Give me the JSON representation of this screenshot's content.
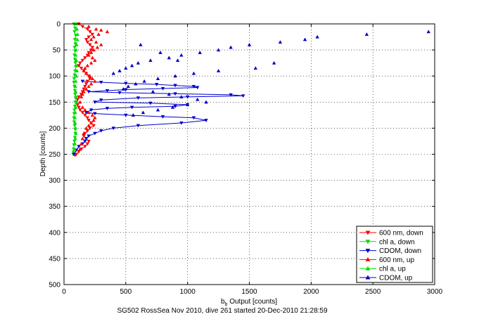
{
  "chart_data": {
    "type": "line",
    "title": "",
    "xlabel": "b",
    "xlabel_sub": "b",
    "xlabel_suffix": " Output [counts]",
    "ylabel": "Depth [counts]",
    "caption": "SG502 RossSea Nov 2010, dive 261 started 20-Dec-2010 21:28:59",
    "xlim": [
      0,
      3000
    ],
    "ylim": [
      500,
      0
    ],
    "xticks": [
      0,
      500,
      1000,
      1500,
      2000,
      2500,
      3000
    ],
    "yticks": [
      0,
      50,
      100,
      150,
      200,
      250,
      300,
      350,
      400,
      450,
      500
    ],
    "grid": true,
    "legend_position": "bottom-right",
    "series": [
      {
        "name": "600 nm, down",
        "color": "#ff0000",
        "marker": "triangle-down",
        "connected": true,
        "x": [
          120,
          150,
          190,
          210,
          230,
          200,
          180,
          190,
          210,
          230,
          220,
          200,
          190,
          170,
          150,
          130,
          120,
          140,
          160,
          180,
          200,
          210,
          190,
          180,
          170,
          160,
          150,
          140,
          120,
          110,
          100,
          110,
          120,
          130,
          150,
          170,
          190,
          200,
          220,
          240,
          210,
          190,
          170,
          160,
          180,
          200,
          190,
          170,
          140,
          120,
          100,
          90
        ],
        "y": [
          0,
          5,
          10,
          15,
          20,
          25,
          30,
          35,
          40,
          45,
          50,
          55,
          60,
          65,
          70,
          75,
          80,
          85,
          90,
          95,
          100,
          105,
          110,
          115,
          120,
          125,
          130,
          135,
          140,
          145,
          150,
          155,
          160,
          165,
          170,
          175,
          180,
          185,
          190,
          195,
          200,
          205,
          210,
          215,
          220,
          225,
          230,
          235,
          240,
          245,
          250,
          252
        ]
      },
      {
        "name": "chl a, down",
        "color": "#00dd00",
        "marker": "triangle-down",
        "connected": true,
        "x": [
          80,
          90,
          85,
          95,
          88,
          92,
          86,
          90,
          84,
          88,
          92,
          95,
          90,
          86,
          82,
          80,
          84,
          88,
          90,
          94,
          92,
          88,
          84,
          82,
          80,
          82,
          86,
          90,
          92,
          88,
          84,
          80,
          78,
          76,
          74
        ],
        "y": [
          0,
          8,
          15,
          22,
          30,
          38,
          45,
          52,
          60,
          68,
          75,
          82,
          90,
          98,
          105,
          112,
          120,
          128,
          135,
          142,
          150,
          158,
          165,
          172,
          180,
          188,
          195,
          202,
          210,
          218,
          225,
          232,
          240,
          246,
          250
        ]
      },
      {
        "name": "CDOM, down",
        "color": "#0000cc",
        "marker": "triangle-down",
        "connected": true,
        "x": [
          150,
          300,
          500,
          750,
          900,
          1050,
          1080,
          800,
          500,
          350,
          200,
          450,
          900,
          1350,
          1450,
          1000,
          600,
          300,
          250,
          700,
          1000,
          900,
          550,
          350,
          220,
          180,
          250,
          500,
          800,
          1050,
          1150,
          950,
          600,
          400,
          300,
          250,
          200,
          180,
          170,
          150,
          120,
          100,
          80
        ],
        "y": [
          110,
          112,
          114,
          116,
          118,
          120,
          122,
          124,
          126,
          128,
          130,
          132,
          134,
          136,
          138,
          140,
          142,
          146,
          150,
          152,
          155,
          158,
          160,
          162,
          165,
          170,
          172,
          175,
          178,
          180,
          185,
          190,
          195,
          200,
          205,
          210,
          215,
          220,
          225,
          230,
          235,
          242,
          250
        ]
      },
      {
        "name": "600 nm, up",
        "color": "#ff0000",
        "marker": "triangle-up",
        "connected": false,
        "x": [
          200,
          260,
          300,
          350,
          280,
          240,
          220,
          260,
          300,
          270,
          240,
          220,
          200,
          230,
          250,
          220,
          190,
          170,
          160,
          180,
          210,
          230,
          250,
          220,
          200,
          180,
          160,
          150,
          140,
          130,
          150,
          170,
          200,
          230,
          250,
          240,
          220,
          200,
          180,
          160,
          150,
          140,
          130
        ],
        "y": [
          5,
          10,
          12,
          15,
          20,
          25,
          30,
          35,
          40,
          45,
          50,
          55,
          60,
          65,
          70,
          75,
          80,
          85,
          90,
          95,
          100,
          105,
          110,
          115,
          120,
          125,
          130,
          135,
          140,
          150,
          160,
          165,
          170,
          175,
          180,
          185,
          190,
          195,
          200,
          210,
          220,
          230,
          240
        ]
      },
      {
        "name": "chl a, up",
        "color": "#00dd00",
        "marker": "triangle-up",
        "connected": false,
        "x": [
          100,
          105,
          110,
          108,
          102,
          98,
          95,
          100,
          104,
          106,
          100,
          96,
          92,
          95,
          98,
          100,
          96,
          92,
          88,
          90,
          94,
          96,
          92,
          88,
          86
        ],
        "y": [
          0,
          10,
          20,
          30,
          40,
          50,
          60,
          70,
          80,
          90,
          100,
          110,
          120,
          130,
          140,
          150,
          160,
          170,
          180,
          190,
          200,
          210,
          220,
          230,
          240
        ]
      },
      {
        "name": "CDOM, up",
        "color": "#0000cc",
        "marker": "triangle-up",
        "connected": false,
        "x": [
          2950,
          2450,
          2050,
          1950,
          1750,
          1500,
          1350,
          1250,
          1100,
          950,
          850,
          700,
          600,
          550,
          500,
          450,
          400,
          620,
          780,
          920,
          1700,
          1550,
          1250,
          1050,
          900,
          760,
          650,
          580,
          520,
          480,
          720,
          850,
          950,
          1080,
          1150,
          1000,
          880,
          760,
          640,
          560
        ],
        "y": [
          15,
          20,
          25,
          30,
          35,
          40,
          45,
          50,
          55,
          60,
          65,
          70,
          75,
          80,
          85,
          90,
          95,
          40,
          55,
          70,
          75,
          85,
          90,
          95,
          100,
          105,
          110,
          115,
          120,
          125,
          130,
          135,
          140,
          145,
          150,
          155,
          160,
          165,
          170,
          175
        ]
      }
    ]
  }
}
